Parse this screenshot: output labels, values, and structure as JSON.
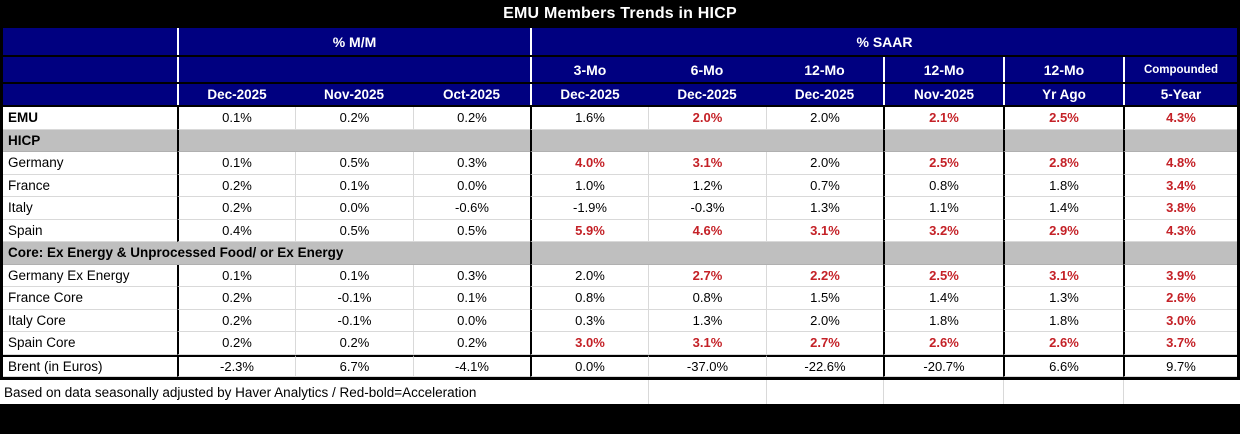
{
  "title": "EMU Members Trends in HICP",
  "colors": {
    "header_blue": "#000080",
    "section_gray": "#BFBFBF",
    "acceleration_red": "#C42127",
    "grid_light": "#D9D9D9",
    "title_bar_black": "#000000"
  },
  "chart_data": {
    "type": "table",
    "title": "EMU Members Trends in HICP",
    "column_groups": [
      "% M/M",
      "% SAAR"
    ],
    "period_headers": [
      "3-Mo",
      "6-Mo",
      "12-Mo",
      "12-Mo",
      "12-Mo",
      "Compounded"
    ],
    "date_headers": [
      "Dec-2025",
      "Nov-2025",
      "Oct-2025",
      "Dec-2025",
      "Dec-2025",
      "Dec-2025",
      "Nov-2025",
      "Yr Ago",
      "5-Year"
    ],
    "red_bold_meaning": "Red-bold=Acceleration",
    "rows": [
      {
        "type": "data",
        "label": "EMU",
        "bold": true,
        "values": [
          "0.1%",
          "0.2%",
          "0.2%",
          "1.6%",
          "2.0%",
          "2.0%",
          "2.1%",
          "2.5%",
          "4.3%"
        ],
        "red": [
          4,
          6,
          7,
          8
        ]
      },
      {
        "type": "section",
        "label": "HICP",
        "label_span": 1
      },
      {
        "type": "data",
        "label": "Germany",
        "bold": false,
        "values": [
          "0.1%",
          "0.5%",
          "0.3%",
          "4.0%",
          "3.1%",
          "2.0%",
          "2.5%",
          "2.8%",
          "4.8%"
        ],
        "red": [
          3,
          4,
          6,
          7,
          8
        ]
      },
      {
        "type": "data",
        "label": "France",
        "bold": false,
        "values": [
          "0.2%",
          "0.1%",
          "0.0%",
          "1.0%",
          "1.2%",
          "0.7%",
          "0.8%",
          "1.8%",
          "3.4%"
        ],
        "red": [
          8
        ]
      },
      {
        "type": "data",
        "label": "Italy",
        "bold": false,
        "values": [
          "0.2%",
          "0.0%",
          "-0.6%",
          "-1.9%",
          "-0.3%",
          "1.3%",
          "1.1%",
          "1.4%",
          "3.8%"
        ],
        "red": [
          8
        ]
      },
      {
        "type": "data",
        "label": "Spain",
        "bold": false,
        "values": [
          "0.4%",
          "0.5%",
          "0.5%",
          "5.9%",
          "4.6%",
          "3.1%",
          "3.2%",
          "2.9%",
          "4.3%"
        ],
        "red": [
          3,
          4,
          5,
          6,
          7,
          8
        ]
      },
      {
        "type": "section",
        "label": "Core: Ex Energy & Unprocessed Food/ or Ex Energy",
        "label_span": 4
      },
      {
        "type": "data",
        "label": "Germany Ex Energy",
        "bold": false,
        "values": [
          "0.1%",
          "0.1%",
          "0.3%",
          "2.0%",
          "2.7%",
          "2.2%",
          "2.5%",
          "3.1%",
          "3.9%"
        ],
        "red": [
          4,
          5,
          6,
          7,
          8
        ]
      },
      {
        "type": "data",
        "label": "France Core",
        "bold": false,
        "values": [
          "0.2%",
          "-0.1%",
          "0.1%",
          "0.8%",
          "0.8%",
          "1.5%",
          "1.4%",
          "1.3%",
          "2.6%"
        ],
        "red": [
          8
        ]
      },
      {
        "type": "data",
        "label": "Italy Core",
        "bold": false,
        "values": [
          "0.2%",
          "-0.1%",
          "0.0%",
          "0.3%",
          "1.3%",
          "2.0%",
          "1.8%",
          "1.8%",
          "3.0%"
        ],
        "red": [
          8
        ]
      },
      {
        "type": "data",
        "label": "Spain Core",
        "bold": false,
        "values": [
          "0.2%",
          "0.2%",
          "0.2%",
          "3.0%",
          "3.1%",
          "2.7%",
          "2.6%",
          "2.6%",
          "3.7%"
        ],
        "red": [
          3,
          4,
          5,
          6,
          7,
          8
        ]
      },
      {
        "type": "data",
        "label": "Brent (in Euros)",
        "bold": false,
        "top_border": true,
        "values": [
          "-2.3%",
          "6.7%",
          "-4.1%",
          "0.0%",
          "-37.0%",
          "-22.6%",
          "-20.7%",
          "6.6%",
          "9.7%"
        ],
        "red": []
      }
    ],
    "footnote": "Based on data seasonally adjusted by Haver Analytics / Red-bold=Acceleration"
  }
}
